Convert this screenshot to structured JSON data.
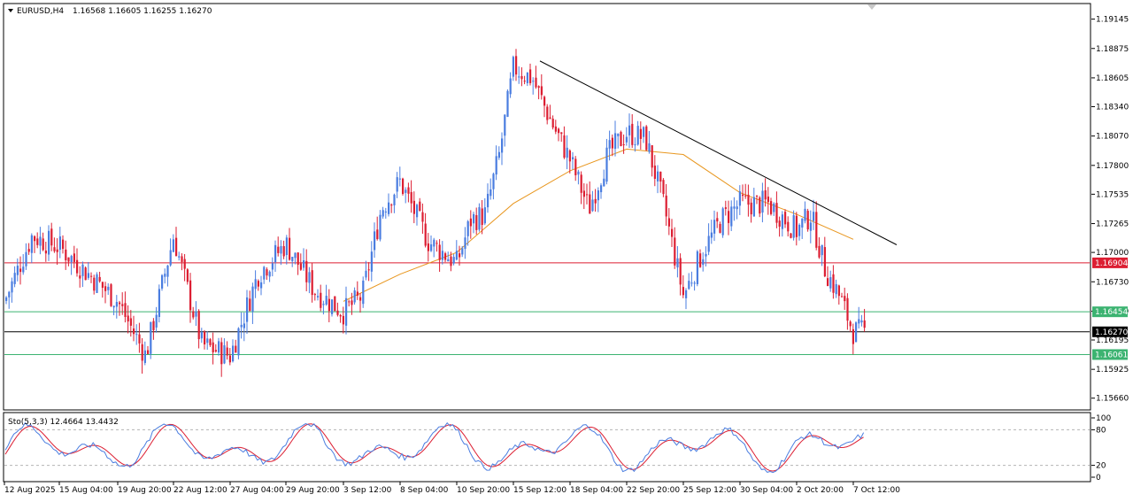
{
  "header": {
    "symbol": "EURUSD,H4",
    "ohlc": "1.16568 1.16605 1.16255 1.16270"
  },
  "indicator": {
    "label": "Sto(5,3,3) 12.4664 13.4432",
    "levels": [
      "100",
      "80",
      "20",
      "0"
    ]
  },
  "price_tags": [
    {
      "label": "1.16904",
      "color": "#dc1e32"
    },
    {
      "label": "1.16454",
      "color": "#3cb371"
    },
    {
      "label": "1.16270",
      "color": "#000000"
    },
    {
      "label": "1.16061",
      "color": "#3cb371"
    }
  ],
  "x_axis_labels": [
    "12 Aug 2025",
    "15 Aug 04:00",
    "19 Aug 20:00",
    "22 Aug 12:00",
    "27 Aug 04:00",
    "29 Aug 20:00",
    "3 Sep 12:00",
    "8 Sep 04:00",
    "10 Sep 20:00",
    "15 Sep 12:00",
    "18 Sep 04:00",
    "22 Sep 20:00",
    "25 Sep 12:00",
    "30 Sep 04:00",
    "2 Oct 20:00",
    "7 Oct 12:00"
  ],
  "colors": {
    "bull": "#4a7de0",
    "bear": "#dc1e32",
    "ma": "#e8961e",
    "stoch_main": "#4a7de0",
    "stoch_signal": "#dc1e32",
    "trendline": "#000000"
  },
  "chart_data": {
    "type": "candlestick",
    "symbol": "EURUSD",
    "timeframe": "H4",
    "y_ticks": [
      1.19145,
      1.18875,
      1.18605,
      1.1834,
      1.1807,
      1.178,
      1.17535,
      1.17265,
      1.17,
      1.1673,
      1.16459,
      1.16195,
      1.15925,
      1.1566
    ],
    "y_range": [
      1.1556,
      1.1928
    ],
    "horizontal_lines": [
      {
        "price": 1.16904,
        "color": "#dc1e32"
      },
      {
        "price": 1.16454,
        "color": "#3cb371"
      },
      {
        "price": 1.1627,
        "color": "#000000"
      },
      {
        "price": 1.16061,
        "color": "#3cb371"
      }
    ],
    "trendline": {
      "from": {
        "x": "15 Sep 12:00",
        "price": 1.1876
      },
      "to": {
        "x": "7 Oct 12:00",
        "price": 1.1707
      }
    },
    "close_path": [
      [
        "12 Aug 2025",
        1.1655
      ],
      [
        "14 Aug",
        1.1715
      ],
      [
        "15 Aug 04:00",
        1.1705
      ],
      [
        "19 Aug 20:00",
        1.1655
      ],
      [
        "21 Aug",
        1.1605
      ],
      [
        "22 Aug 12:00",
        1.1715
      ],
      [
        "25 Aug",
        1.1615
      ],
      [
        "27 Aug 04:00",
        1.1605
      ],
      [
        "28 Aug",
        1.168
      ],
      [
        "29 Aug 20:00",
        1.1708
      ],
      [
        "2 Sep",
        1.1665
      ],
      [
        "3 Sep 12:00",
        1.1645
      ],
      [
        "4 Sep",
        1.166
      ],
      [
        "5 Sep",
        1.174
      ],
      [
        "8 Sep 04:00",
        1.1765
      ],
      [
        "9 Sep",
        1.171
      ],
      [
        "10 Sep 20:00",
        1.169
      ],
      [
        "11 Sep",
        1.173
      ],
      [
        "12 Sep",
        1.1735
      ],
      [
        "15 Sep",
        1.179
      ],
      [
        "15 Sep 12:00",
        1.187
      ],
      [
        "16 Sep",
        1.186
      ],
      [
        "17 Sep",
        1.182
      ],
      [
        "18 Sep 04:00",
        1.1785
      ],
      [
        "19 Sep",
        1.174
      ],
      [
        "22 Sep",
        1.179
      ],
      [
        "22 Sep 20:00",
        1.181
      ],
      [
        "23 Sep",
        1.1805
      ],
      [
        "24 Sep",
        1.174
      ],
      [
        "25 Sep 12:00",
        1.166
      ],
      [
        "26 Sep",
        1.17
      ],
      [
        "29 Sep",
        1.173
      ],
      [
        "30 Sep 04:00",
        1.1745
      ],
      [
        "1 Oct",
        1.1745
      ],
      [
        "2 Oct 20:00",
        1.172
      ],
      [
        "3 Oct",
        1.1735
      ],
      [
        "6 Oct",
        1.1685
      ],
      [
        "7 Oct",
        1.166
      ],
      [
        "7 Oct 12:00",
        1.1627
      ]
    ],
    "moving_average_path": [
      [
        "3 Sep 12:00",
        1.1655
      ],
      [
        "8 Sep 04:00",
        1.168
      ],
      [
        "10 Sep 20:00",
        1.17
      ],
      [
        "15 Sep 12:00",
        1.1745
      ],
      [
        "18 Sep 04:00",
        1.1775
      ],
      [
        "22 Sep 20:00",
        1.1795
      ],
      [
        "25 Sep 12:00",
        1.179
      ],
      [
        "30 Sep 04:00",
        1.1755
      ],
      [
        "2 Oct 20:00",
        1.1735
      ],
      [
        "7 Oct 12:00",
        1.1712
      ]
    ],
    "stochastic": {
      "k": 12.4664,
      "d": 13.4432,
      "levels": [
        20,
        80
      ]
    }
  }
}
